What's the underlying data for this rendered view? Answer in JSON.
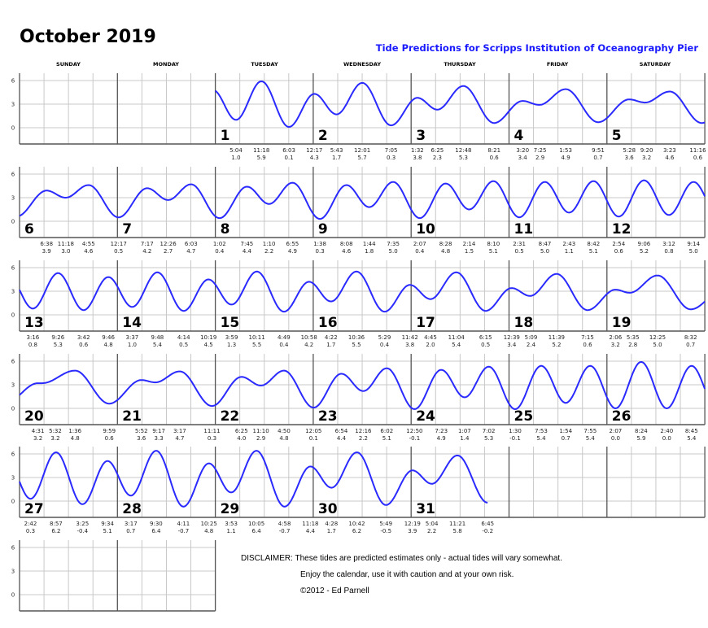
{
  "title": "October 2019",
  "subtitle": "Tide Predictions for Scripps Institution of Oceanography Pier",
  "weekdays": [
    "SUNDAY",
    "MONDAY",
    "TUESDAY",
    "WEDNESDAY",
    "THURSDAY",
    "FRIDAY",
    "SATURDAY"
  ],
  "y_ticks": [
    "6",
    "3",
    "0"
  ],
  "curve_color": "#2a2aff",
  "days": [
    {
      "day": "1",
      "tides": [
        [
          "5:04",
          "1.0"
        ],
        [
          "11:18",
          "5.9"
        ],
        [
          "6:03",
          "0.1"
        ]
      ]
    },
    {
      "day": "2",
      "tides": [
        [
          "12:17",
          "4.3"
        ],
        [
          "5:43",
          "1.7"
        ],
        [
          "12:01",
          "5.7"
        ],
        [
          "7:05",
          "0.3"
        ]
      ]
    },
    {
      "day": "3",
      "tides": [
        [
          "1:32",
          "3.8"
        ],
        [
          "6:25",
          "2.3"
        ],
        [
          "12:48",
          "5.3"
        ],
        [
          "8:21",
          "0.6"
        ]
      ]
    },
    {
      "day": "4",
      "tides": [
        [
          "3:20",
          "3.4"
        ],
        [
          "7:25",
          "2.9"
        ],
        [
          "1:53",
          "4.9"
        ],
        [
          "9:51",
          "0.7"
        ]
      ]
    },
    {
      "day": "5",
      "tides": [
        [
          "5:28",
          "3.6"
        ],
        [
          "9:20",
          "3.2"
        ],
        [
          "3:23",
          "4.6"
        ],
        [
          "11:16",
          "0.6"
        ]
      ]
    },
    {
      "day": "6",
      "tides": [
        [
          "6:38",
          "3.9"
        ],
        [
          "11:18",
          "3.0"
        ],
        [
          "4:55",
          "4.6"
        ]
      ]
    },
    {
      "day": "7",
      "tides": [
        [
          "12:17",
          "0.5"
        ],
        [
          "7:17",
          "4.2"
        ],
        [
          "12:26",
          "2.7"
        ],
        [
          "6:03",
          "4.7"
        ]
      ]
    },
    {
      "day": "8",
      "tides": [
        [
          "1:02",
          "0.4"
        ],
        [
          "7:45",
          "4.4"
        ],
        [
          "1:10",
          "2.2"
        ],
        [
          "6:55",
          "4.9"
        ]
      ]
    },
    {
      "day": "9",
      "tides": [
        [
          "1:38",
          "0.3"
        ],
        [
          "8:08",
          "4.6"
        ],
        [
          "1:44",
          "1.8"
        ],
        [
          "7:35",
          "5.0"
        ]
      ]
    },
    {
      "day": "10",
      "tides": [
        [
          "2:07",
          "0.4"
        ],
        [
          "8:28",
          "4.8"
        ],
        [
          "2:14",
          "1.5"
        ],
        [
          "8:10",
          "5.1"
        ]
      ]
    },
    {
      "day": "11",
      "tides": [
        [
          "2:31",
          "0.5"
        ],
        [
          "8:47",
          "5.0"
        ],
        [
          "2:43",
          "1.1"
        ],
        [
          "8:42",
          "5.1"
        ]
      ]
    },
    {
      "day": "12",
      "tides": [
        [
          "2:54",
          "0.6"
        ],
        [
          "9:06",
          "5.2"
        ],
        [
          "3:12",
          "0.8"
        ],
        [
          "9:14",
          "5.0"
        ]
      ]
    },
    {
      "day": "13",
      "tides": [
        [
          "3:16",
          "0.8"
        ],
        [
          "9:26",
          "5.3"
        ],
        [
          "3:42",
          "0.6"
        ],
        [
          "9:46",
          "4.8"
        ]
      ]
    },
    {
      "day": "14",
      "tides": [
        [
          "3:37",
          "1.0"
        ],
        [
          "9:48",
          "5.4"
        ],
        [
          "4:14",
          "0.5"
        ],
        [
          "10:19",
          "4.5"
        ]
      ]
    },
    {
      "day": "15",
      "tides": [
        [
          "3:59",
          "1.3"
        ],
        [
          "10:11",
          "5.5"
        ],
        [
          "4:49",
          "0.4"
        ],
        [
          "10:58",
          "4.2"
        ]
      ]
    },
    {
      "day": "16",
      "tides": [
        [
          "4:22",
          "1.7"
        ],
        [
          "10:36",
          "5.5"
        ],
        [
          "5:29",
          "0.4"
        ],
        [
          "11:42",
          "3.8"
        ]
      ]
    },
    {
      "day": "17",
      "tides": [
        [
          "4:45",
          "2.0"
        ],
        [
          "11:04",
          "5.4"
        ],
        [
          "6:15",
          "0.5"
        ]
      ]
    },
    {
      "day": "18",
      "tides": [
        [
          "12:39",
          "3.4"
        ],
        [
          "5:09",
          "2.4"
        ],
        [
          "11:39",
          "5.2"
        ],
        [
          "7:15",
          "0.6"
        ]
      ]
    },
    {
      "day": "19",
      "tides": [
        [
          "2:06",
          "3.2"
        ],
        [
          "5:35",
          "2.8"
        ],
        [
          "12:25",
          "5.0"
        ],
        [
          "8:32",
          "0.7"
        ]
      ]
    },
    {
      "day": "20",
      "tides": [
        [
          "4:31",
          "3.2"
        ],
        [
          "5:32",
          "3.2"
        ],
        [
          "1:36",
          "4.8"
        ],
        [
          "9:59",
          "0.6"
        ]
      ]
    },
    {
      "day": "21",
      "tides": [
        [
          "5:52",
          "3.6"
        ],
        [
          "9:17",
          "3.3"
        ],
        [
          "3:17",
          "4.7"
        ],
        [
          "11:11",
          "0.3"
        ]
      ]
    },
    {
      "day": "22",
      "tides": [
        [
          "6:25",
          "4.0"
        ],
        [
          "11:10",
          "2.9"
        ],
        [
          "4:50",
          "4.8"
        ]
      ]
    },
    {
      "day": "23",
      "tides": [
        [
          "12:05",
          "0.1"
        ],
        [
          "6:54",
          "4.4"
        ],
        [
          "12:16",
          "2.2"
        ],
        [
          "6:02",
          "5.1"
        ]
      ]
    },
    {
      "day": "24",
      "tides": [
        [
          "12:50",
          "-0.1"
        ],
        [
          "7:23",
          "4.9"
        ],
        [
          "1:07",
          "1.4"
        ],
        [
          "7:02",
          "5.3"
        ]
      ]
    },
    {
      "day": "25",
      "tides": [
        [
          "1:30",
          "-0.1"
        ],
        [
          "7:53",
          "5.4"
        ],
        [
          "1:54",
          "0.7"
        ],
        [
          "7:55",
          "5.4"
        ]
      ]
    },
    {
      "day": "26",
      "tides": [
        [
          "2:07",
          "0.0"
        ],
        [
          "8:24",
          "5.9"
        ],
        [
          "2:40",
          "0.0"
        ],
        [
          "8:45",
          "5.4"
        ]
      ]
    },
    {
      "day": "27",
      "tides": [
        [
          "2:42",
          "0.3"
        ],
        [
          "8:57",
          "6.2"
        ],
        [
          "3:25",
          "-0.4"
        ],
        [
          "9:34",
          "5.1"
        ]
      ]
    },
    {
      "day": "28",
      "tides": [
        [
          "3:17",
          "0.7"
        ],
        [
          "9:30",
          "6.4"
        ],
        [
          "4:11",
          "-0.7"
        ],
        [
          "10:25",
          "4.8"
        ]
      ]
    },
    {
      "day": "29",
      "tides": [
        [
          "3:53",
          "1.1"
        ],
        [
          "10:05",
          "6.4"
        ],
        [
          "4:58",
          "-0.7"
        ],
        [
          "11:18",
          "4.4"
        ]
      ]
    },
    {
      "day": "30",
      "tides": [
        [
          "4:28",
          "1.7"
        ],
        [
          "10:42",
          "6.2"
        ],
        [
          "5:49",
          "-0.5"
        ]
      ]
    },
    {
      "day": "31",
      "tides": [
        [
          "12:19",
          "3.9"
        ],
        [
          "5:04",
          "2.2"
        ],
        [
          "11:21",
          "5.8"
        ],
        [
          "6:45",
          "-0.2"
        ]
      ]
    }
  ],
  "disclaimer": {
    "line1": "DISCLAIMER: These tides are predicted estimates only - actual tides will vary somewhat.",
    "line2": "Enjoy the calendar, use it with caution and at your own risk.",
    "line3": "©2012 - Ed Parnell"
  }
}
